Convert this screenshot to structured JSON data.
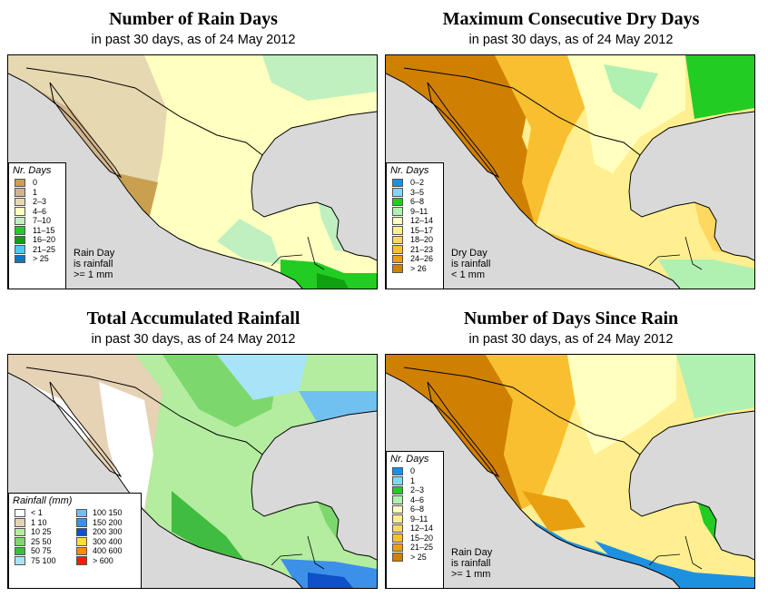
{
  "panels": [
    {
      "title": "Number of Rain Days",
      "subtitle": "in past 30 days, as of  24 May 2012",
      "legend_title": "Nr. Days",
      "legend": [
        {
          "label": "0",
          "color": "#c8a050"
        },
        {
          "label": "1",
          "color": "#d2b48c"
        },
        {
          "label": "2–3",
          "color": "#e6d8b0"
        },
        {
          "label": "4–6",
          "color": "#ffffc0"
        },
        {
          "label": "7–10",
          "color": "#c0f0c0"
        },
        {
          "label": "11–15",
          "color": "#22cc22"
        },
        {
          "label": "16–20",
          "color": "#10a010"
        },
        {
          "label": "21–25",
          "color": "#4ec8f0"
        },
        {
          "label": "> 25",
          "color": "#0a78c8"
        }
      ],
      "note": [
        "Rain Day",
        "is rainfall",
        ">= 1 mm"
      ]
    },
    {
      "title": "Maximum Consecutive Dry Days",
      "subtitle": "in past 30 days, as of  24 May 2012",
      "legend_title": "Nr. Days",
      "legend": [
        {
          "label": "0–2",
          "color": "#1e90e0"
        },
        {
          "label": "3–5",
          "color": "#80d8f8"
        },
        {
          "label": "6–8",
          "color": "#22cc22"
        },
        {
          "label": "9–11",
          "color": "#b0f0b0"
        },
        {
          "label": "12–14",
          "color": "#ffffc0"
        },
        {
          "label": "15–17",
          "color": "#ffef90"
        },
        {
          "label": "18–20",
          "color": "#ffd860"
        },
        {
          "label": "21–23",
          "color": "#f8c030"
        },
        {
          "label": "24–26",
          "color": "#e8a010"
        },
        {
          "label": "> 26",
          "color": "#d08000"
        }
      ],
      "note": [
        "Dry Day",
        "is rainfall",
        "< 1 mm"
      ]
    },
    {
      "title": "Total Accumulated Rainfall",
      "subtitle": "in past 30 days, as of  24 May 2012",
      "legend_title": "Rainfall (mm)",
      "legend_left": [
        {
          "label": "< 1",
          "color": "#ffffff"
        },
        {
          "label": "1   10",
          "color": "#e6d2b4"
        },
        {
          "label": "10   25",
          "color": "#b4eca0"
        },
        {
          "label": "25   50",
          "color": "#7cd86c"
        },
        {
          "label": "50   75",
          "color": "#40bc40"
        },
        {
          "label": "75  100",
          "color": "#a8e4f8"
        }
      ],
      "legend_right": [
        {
          "label": "100  150",
          "color": "#70c0f0"
        },
        {
          "label": "150  200",
          "color": "#3c90e8"
        },
        {
          "label": "200  300",
          "color": "#1050c8"
        },
        {
          "label": "300  400",
          "color": "#ffdc40"
        },
        {
          "label": "400  600",
          "color": "#ff8c00"
        },
        {
          "label": "> 600",
          "color": "#f02000"
        }
      ]
    },
    {
      "title": "Number of Days Since Rain",
      "subtitle": "in past 30 days, as of  24 May 2012",
      "legend_title": "Nr. Days",
      "legend": [
        {
          "label": "0",
          "color": "#1e90e0"
        },
        {
          "label": "1",
          "color": "#80d8f8"
        },
        {
          "label": "2–3",
          "color": "#22cc22"
        },
        {
          "label": "4–6",
          "color": "#b0f0b0"
        },
        {
          "label": "6–8",
          "color": "#ffffc0"
        },
        {
          "label": "9–11",
          "color": "#ffef90"
        },
        {
          "label": "12–14",
          "color": "#ffd860"
        },
        {
          "label": "15–20",
          "color": "#f8c030"
        },
        {
          "label": "21–25",
          "color": "#e8a010"
        },
        {
          "label": "> 25",
          "color": "#d08000"
        }
      ],
      "note": [
        "Rain Day",
        "is rainfall",
        ">= 1 mm"
      ]
    }
  ],
  "colors": {
    "ocean": "#d9d9d9",
    "border": "#000000"
  }
}
